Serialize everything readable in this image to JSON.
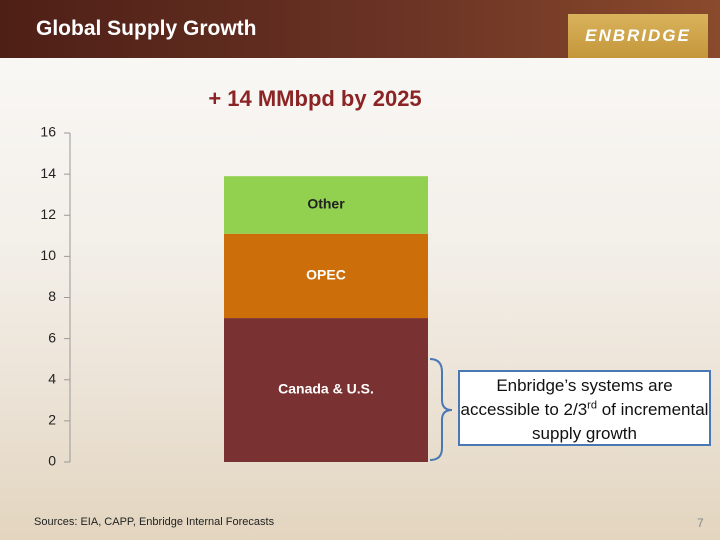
{
  "slide": {
    "title": "Global Supply Growth",
    "logo": "ENBRIDGE",
    "source": "Sources: EIA, CAPP, Enbridge Internal Forecasts",
    "page_number": "7",
    "annotation": [
      "Enbridge’s systems are accessible to 2/3",
      "rd",
      "of incremental supply growth"
    ]
  },
  "chart_data": {
    "type": "stacked_bar",
    "title": "+ 14 MMbpd by 2025",
    "series": [
      {
        "name": "Canada & U.S.",
        "color": "#7a3131",
        "values": [
          7
        ]
      },
      {
        "name": "OPEC",
        "color": "#cc6e0a",
        "values": [
          4.1
        ]
      },
      {
        "name": "Other",
        "color": "#92d050",
        "values": [
          2.8
        ]
      }
    ],
    "ylim": [
      0,
      16
    ],
    "yticks": [
      0,
      2,
      4,
      6,
      8,
      10,
      12,
      14,
      16
    ],
    "grid": false
  }
}
